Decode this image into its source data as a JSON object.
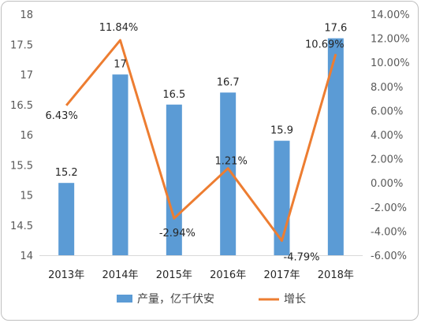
{
  "chart_data": {
    "type": "bar",
    "categories": [
      "2013年",
      "2014年",
      "2015年",
      "2016年",
      "2017年",
      "2018年"
    ],
    "series": [
      {
        "name": "产量，亿千伏安",
        "type": "bar",
        "axis": "left",
        "color": "#5B9BD5",
        "values": [
          15.2,
          17,
          16.5,
          16.7,
          15.9,
          17.6
        ],
        "labels": [
          "15.2",
          "17",
          "16.5",
          "16.7",
          "15.9",
          "17.6"
        ]
      },
      {
        "name": "增长",
        "type": "line",
        "axis": "right",
        "color": "#ED7D31",
        "values": [
          6.43,
          11.84,
          -2.94,
          1.21,
          -4.79,
          10.69
        ],
        "labels": [
          "6.43%",
          "11.84%",
          "-2.94%",
          "1.21%",
          "-4.79%",
          "10.69%"
        ]
      }
    ],
    "y_left": {
      "range": [
        14,
        18
      ],
      "ticks": [
        "14",
        "14.5",
        "15",
        "15.5",
        "16",
        "16.5",
        "17",
        "17.5",
        "18"
      ]
    },
    "y_right": {
      "range": [
        -6,
        14
      ],
      "ticks": [
        "-6.00%",
        "-4.00%",
        "-2.00%",
        "0.00%",
        "2.00%",
        "4.00%",
        "6.00%",
        "8.00%",
        "10.00%",
        "12.00%",
        "14.00%"
      ]
    },
    "legend": [
      "产量，亿千伏安",
      "增长"
    ],
    "legend_position": "bottom",
    "grid": false
  }
}
